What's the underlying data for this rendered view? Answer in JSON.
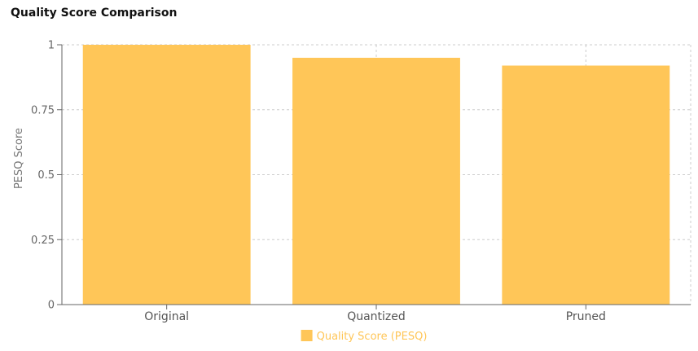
{
  "chart_data": {
    "type": "bar",
    "title": "Quality Score Comparison",
    "xlabel": "",
    "ylabel": "PESQ Score",
    "categories": [
      "Original",
      "Quantized",
      "Pruned"
    ],
    "series": [
      {
        "name": "Quality Score (PESQ)",
        "values": [
          1.0,
          0.95,
          0.92
        ],
        "color": "#FFC658"
      }
    ],
    "ylim": [
      0,
      1
    ],
    "yticks": [
      0,
      0.25,
      0.5,
      0.75,
      1
    ],
    "ytick_labels": [
      "0",
      "0.25",
      "0.5",
      "0.75",
      "1"
    ],
    "grid": true,
    "legend_position": "bottom"
  }
}
